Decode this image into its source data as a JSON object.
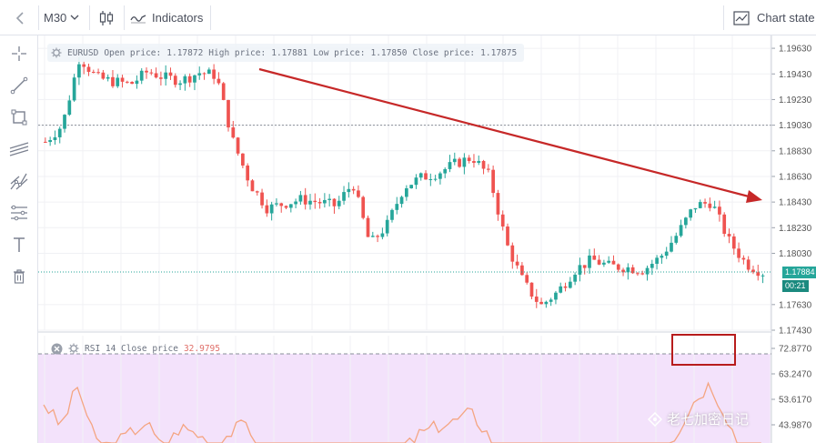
{
  "toolbar": {
    "interval": "M30",
    "indicators_label": "Indicators",
    "chart_state_label": "Chart state"
  },
  "sidebar": {
    "tools": [
      "crosshair-icon",
      "trend-line-icon",
      "rectangle-icon",
      "parallel-channel-icon",
      "pitchfork-icon",
      "fib-levels-icon",
      "text-icon",
      "trash-icon"
    ]
  },
  "main_legend": {
    "symbol": "EURUSD",
    "open_label": "Open price:",
    "open": "1.17872",
    "high_label": "High price:",
    "high": "1.17881",
    "low_label": "Low price:",
    "low": "1.17850",
    "close_label": "Close price:",
    "close": "1.17875"
  },
  "rsi_legend": {
    "name": "RSI 14 Close price",
    "value": "32.9795"
  },
  "price_axis": {
    "ticks": [
      "1.19630",
      "1.19430",
      "1.19230",
      "1.19030",
      "1.18830",
      "1.18630",
      "1.18430",
      "1.18230",
      "1.18030",
      "1.17630",
      "1.17430"
    ],
    "last_price": "1.17884",
    "countdown": "00:21"
  },
  "rsi_axis": {
    "ticks": [
      "72.8770",
      "63.2470",
      "53.6170",
      "43.9870"
    ]
  },
  "watermark": "老七加密日记",
  "colors": {
    "up": "#26a69a",
    "down": "#ef5350",
    "arrow": "#c62828",
    "rsi_line": "#f4a582",
    "rsi_band": "#f3e2fb",
    "highlight_box": "#b71c1c",
    "last_price_tag": "#26a69a"
  },
  "chart_data": {
    "type": "candlestick",
    "symbol": "EURUSD",
    "interval": "M30",
    "close_path": [
      1.189,
      1.1903,
      1.1956,
      1.194,
      1.1937,
      1.1935,
      1.1945,
      1.194,
      1.1938,
      1.1944,
      1.1942,
      1.189,
      1.1857,
      1.1838,
      1.1842,
      1.1845,
      1.1843,
      1.184,
      1.1858,
      1.181,
      1.1825,
      1.1855,
      1.1862,
      1.1866,
      1.1873,
      1.1878,
      1.1863,
      1.181,
      1.178,
      1.1762,
      1.1773,
      1.179,
      1.1798,
      1.1793,
      1.1792,
      1.179,
      1.18,
      1.1818,
      1.184,
      1.1843,
      1.1813,
      1.1795,
      1.1788
    ],
    "ylim": [
      1.1743,
      1.1973
    ],
    "rsi": {
      "name": "RSI 14 Close price",
      "last": 32.9795,
      "path": [
        68,
        58,
        75,
        52,
        50,
        55,
        60,
        48,
        58,
        55,
        50,
        56,
        60,
        30,
        36,
        42,
        45,
        42,
        48,
        32,
        40,
        48,
        55,
        58,
        60,
        64,
        55,
        35,
        28,
        25,
        30,
        42,
        46,
        44,
        45,
        44,
        48,
        55,
        68,
        76,
        62,
        45,
        33
      ],
      "ylim": [
        40,
        76
      ]
    }
  }
}
